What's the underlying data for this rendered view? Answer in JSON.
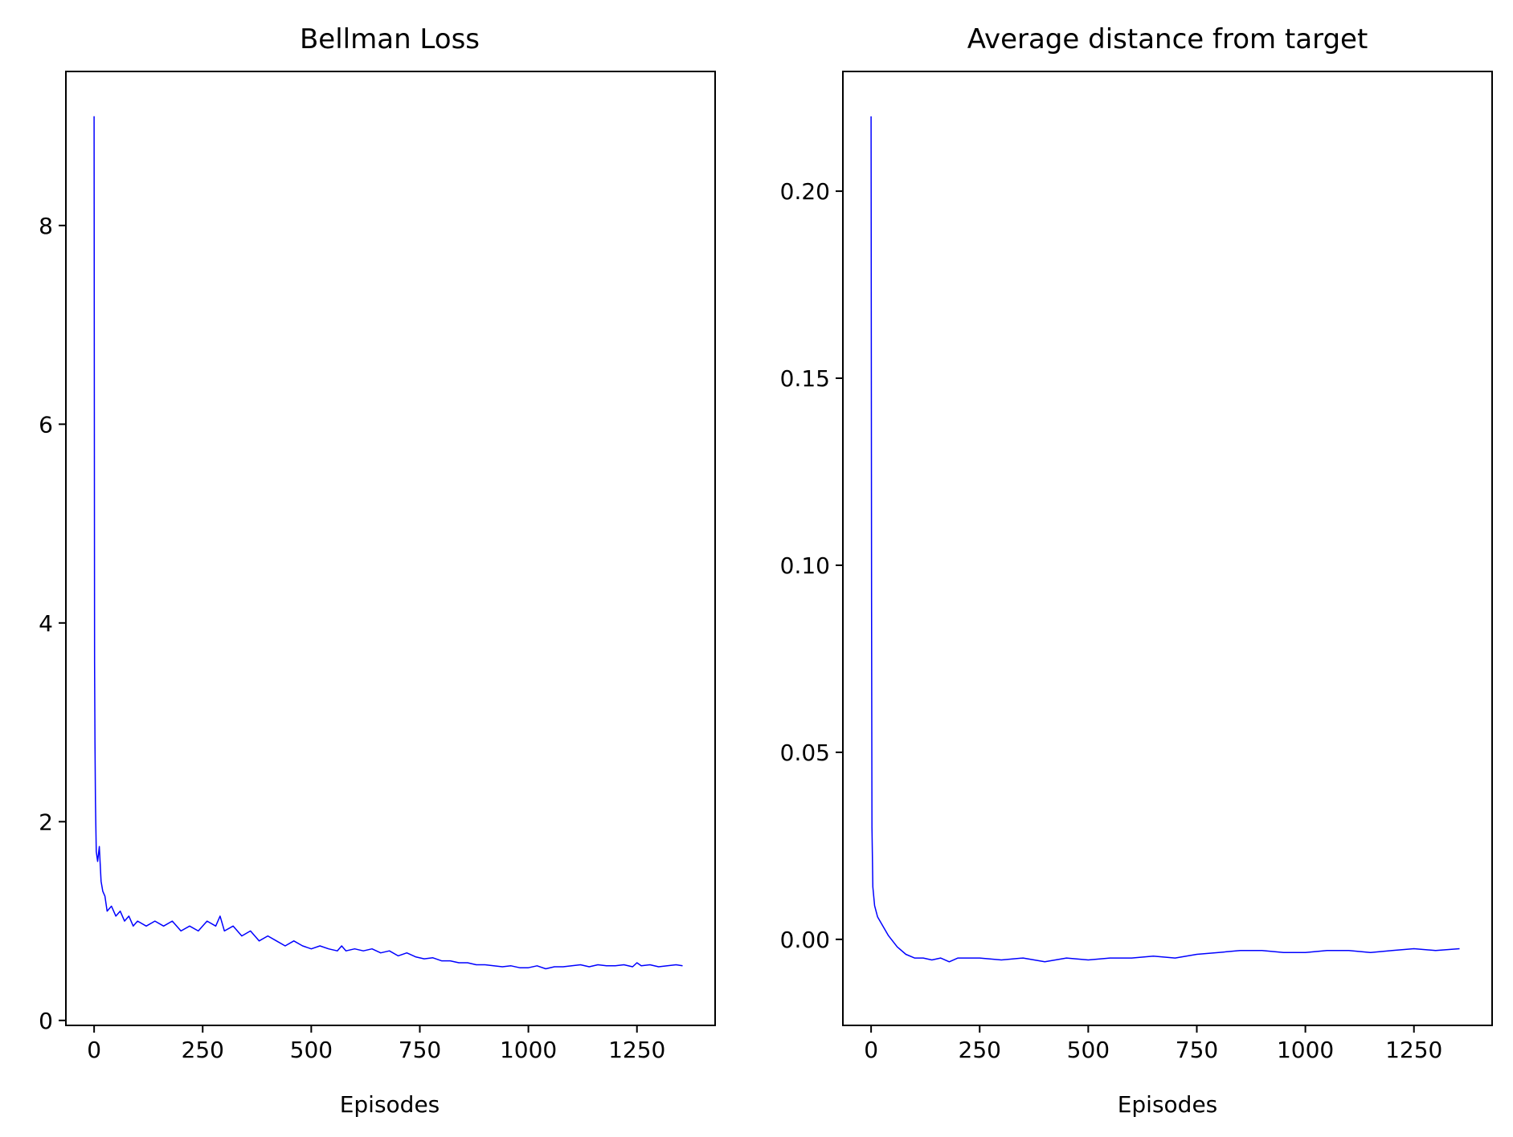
{
  "chart_data": [
    {
      "type": "line",
      "title": "Bellman Loss",
      "xlabel": "Episodes",
      "ylabel": "",
      "xlim": [
        -65,
        1430
      ],
      "ylim": [
        -0.05,
        9.55
      ],
      "xticks": [
        0,
        250,
        500,
        750,
        1000,
        1250
      ],
      "xtick_labels": [
        "0",
        "250",
        "500",
        "750",
        "1000",
        "1250"
      ],
      "yticks": [
        0,
        2,
        4,
        6,
        8
      ],
      "ytick_labels": [
        "0",
        "2",
        "4",
        "6",
        "8"
      ],
      "grid": false,
      "legend": false,
      "color": "#0000ff",
      "series": [
        {
          "x": [
            0,
            1,
            2,
            3,
            5,
            8,
            12,
            16,
            20,
            25,
            30,
            40,
            50,
            60,
            70,
            80,
            90,
            100,
            120,
            140,
            160,
            180,
            200,
            220,
            240,
            260,
            280,
            290,
            300,
            320,
            340,
            360,
            380,
            400,
            420,
            440,
            460,
            480,
            500,
            520,
            540,
            560,
            570,
            580,
            600,
            620,
            640,
            660,
            680,
            700,
            720,
            740,
            760,
            780,
            800,
            820,
            840,
            860,
            880,
            900,
            920,
            940,
            960,
            980,
            1000,
            1020,
            1040,
            1060,
            1080,
            1100,
            1120,
            1140,
            1160,
            1180,
            1200,
            1220,
            1240,
            1250,
            1260,
            1280,
            1300,
            1320,
            1340,
            1355
          ],
          "values": [
            9.1,
            3.6,
            2.8,
            2.2,
            1.7,
            1.6,
            1.75,
            1.4,
            1.3,
            1.25,
            1.1,
            1.15,
            1.05,
            1.1,
            1.0,
            1.05,
            0.95,
            1.0,
            0.95,
            1.0,
            0.95,
            1.0,
            0.9,
            0.95,
            0.9,
            1.0,
            0.95,
            1.05,
            0.9,
            0.95,
            0.85,
            0.9,
            0.8,
            0.85,
            0.8,
            0.75,
            0.8,
            0.75,
            0.72,
            0.75,
            0.72,
            0.7,
            0.75,
            0.7,
            0.72,
            0.7,
            0.72,
            0.68,
            0.7,
            0.65,
            0.68,
            0.64,
            0.62,
            0.63,
            0.6,
            0.6,
            0.58,
            0.58,
            0.56,
            0.56,
            0.55,
            0.54,
            0.55,
            0.53,
            0.53,
            0.55,
            0.52,
            0.54,
            0.54,
            0.55,
            0.56,
            0.54,
            0.56,
            0.55,
            0.55,
            0.56,
            0.54,
            0.58,
            0.55,
            0.56,
            0.54,
            0.55,
            0.56,
            0.55
          ]
        }
      ]
    },
    {
      "type": "line",
      "title": "Average distance from target",
      "xlabel": "Episodes",
      "ylabel": "",
      "xlim": [
        -65,
        1430
      ],
      "ylim": [
        -0.023,
        0.232
      ],
      "xticks": [
        0,
        250,
        500,
        750,
        1000,
        1250
      ],
      "xtick_labels": [
        "0",
        "250",
        "500",
        "750",
        "1000",
        "1250"
      ],
      "yticks": [
        0.0,
        0.05,
        0.1,
        0.15,
        0.2
      ],
      "ytick_labels": [
        "0.00",
        "0.05",
        "0.10",
        "0.15",
        "0.20"
      ],
      "grid": false,
      "legend": false,
      "color": "#0000ff",
      "series": [
        {
          "x": [
            0,
            1,
            2,
            4,
            8,
            15,
            25,
            40,
            60,
            80,
            100,
            120,
            140,
            160,
            180,
            200,
            250,
            300,
            350,
            400,
            450,
            500,
            550,
            600,
            650,
            700,
            750,
            800,
            850,
            900,
            950,
            1000,
            1050,
            1100,
            1150,
            1200,
            1250,
            1300,
            1355
          ],
          "values": [
            0.22,
            0.09,
            0.03,
            0.014,
            0.009,
            0.006,
            0.004,
            0.001,
            -0.002,
            -0.004,
            -0.005,
            -0.005,
            -0.0055,
            -0.005,
            -0.006,
            -0.005,
            -0.005,
            -0.0055,
            -0.005,
            -0.006,
            -0.005,
            -0.0055,
            -0.005,
            -0.005,
            -0.0045,
            -0.005,
            -0.004,
            -0.0035,
            -0.003,
            -0.003,
            -0.0035,
            -0.0035,
            -0.003,
            -0.003,
            -0.0035,
            -0.003,
            -0.0025,
            -0.003,
            -0.0025
          ]
        }
      ]
    }
  ]
}
